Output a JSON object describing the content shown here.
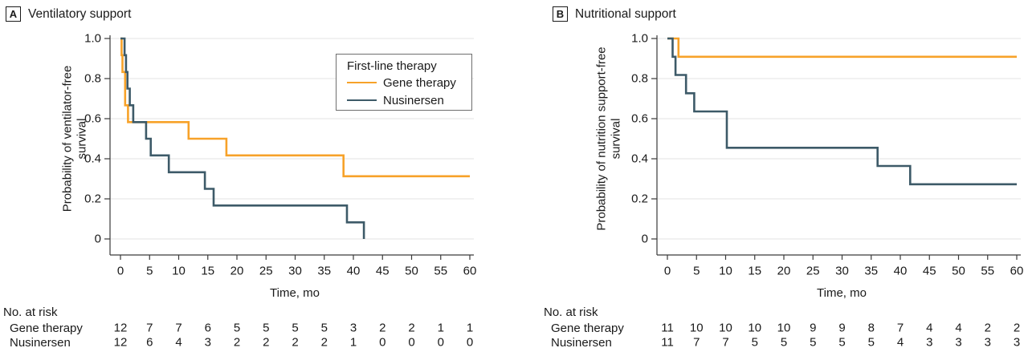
{
  "colors": {
    "grid": "#E3E3E3",
    "axis": "#3A3A3A",
    "text": "#1A1A1A",
    "legend_border": "#6E6E6E",
    "gene_therapy": "#F7A229",
    "nusinersen": "#3D5A68"
  },
  "chart_data": [
    {
      "type": "line",
      "subtype": "kaplan-meier-step",
      "panel_letter": "A",
      "title": "Ventilatory support",
      "xlabel": "Time, mo",
      "ylabel": "Probability of ventilator-free survival",
      "ylabel_lines": [
        "Probability of ventilator-free",
        "survival"
      ],
      "xlim": [
        0,
        60
      ],
      "ylim": [
        0,
        1.0
      ],
      "xticks": [
        0,
        5,
        10,
        15,
        20,
        25,
        30,
        35,
        40,
        45,
        50,
        55,
        60
      ],
      "yticks": [
        0,
        0.2,
        0.4,
        0.6,
        0.8,
        1.0
      ],
      "ytick_labels": [
        "0",
        "0.2",
        "0.4",
        "0.6",
        "0.8",
        "1.0"
      ],
      "grid": "horizontal",
      "legend": {
        "visible": true,
        "position": "upper-right",
        "title": "First-line therapy"
      },
      "series": [
        {
          "name": "Gene therapy",
          "color": "#F7A229",
          "steps": [
            [
              0,
              1.0
            ],
            [
              0.2,
              0.917
            ],
            [
              0.35,
              0.833
            ],
            [
              0.8,
              0.667
            ],
            [
              1.3,
              0.583
            ],
            [
              11.7,
              0.5
            ],
            [
              18.2,
              0.417
            ],
            [
              38.3,
              0.313
            ],
            [
              60,
              0.313
            ]
          ]
        },
        {
          "name": "Nusinersen",
          "color": "#3D5A68",
          "steps": [
            [
              0,
              1.0
            ],
            [
              0.7,
              0.917
            ],
            [
              0.95,
              0.833
            ],
            [
              1.2,
              0.75
            ],
            [
              1.6,
              0.667
            ],
            [
              2.2,
              0.583
            ],
            [
              4.4,
              0.5
            ],
            [
              5.2,
              0.417
            ],
            [
              8.3,
              0.333
            ],
            [
              14.5,
              0.25
            ],
            [
              16,
              0.167
            ],
            [
              38.9,
              0.083
            ],
            [
              41.8,
              0
            ]
          ]
        }
      ],
      "risk_table": {
        "heading": "No. at risk",
        "rows": [
          {
            "label": "Gene therapy",
            "values": [
              12,
              7,
              7,
              6,
              5,
              5,
              5,
              5,
              3,
              2,
              2,
              1,
              1
            ]
          },
          {
            "label": "Nusinersen",
            "values": [
              12,
              6,
              4,
              3,
              2,
              2,
              2,
              2,
              1,
              0,
              0,
              0,
              0
            ]
          }
        ]
      }
    },
    {
      "type": "line",
      "subtype": "kaplan-meier-step",
      "panel_letter": "B",
      "title": "Nutritional support",
      "xlabel": "Time, mo",
      "ylabel": "Probability of nutrition support-free survival",
      "ylabel_lines": [
        "Probability of nutrition support-free",
        "survival"
      ],
      "xlim": [
        0,
        60
      ],
      "ylim": [
        0,
        1.0
      ],
      "xticks": [
        0,
        5,
        10,
        15,
        20,
        25,
        30,
        35,
        40,
        45,
        50,
        55,
        60
      ],
      "yticks": [
        0,
        0.2,
        0.4,
        0.6,
        0.8,
        1.0
      ],
      "ytick_labels": [
        "0",
        "0.2",
        "0.4",
        "0.6",
        "0.8",
        "1.0"
      ],
      "grid": "horizontal",
      "legend": {
        "visible": false
      },
      "series": [
        {
          "name": "Gene therapy",
          "color": "#F7A229",
          "steps": [
            [
              0,
              1.0
            ],
            [
              1.9,
              0.909
            ],
            [
              60,
              0.909
            ]
          ]
        },
        {
          "name": "Nusinersen",
          "color": "#3D5A68",
          "steps": [
            [
              0,
              1.0
            ],
            [
              0.9,
              0.909
            ],
            [
              1.4,
              0.818
            ],
            [
              3.2,
              0.727
            ],
            [
              4.6,
              0.636
            ],
            [
              10.2,
              0.455
            ],
            [
              36.1,
              0.364
            ],
            [
              41.7,
              0.273
            ],
            [
              60,
              0.273
            ]
          ]
        }
      ],
      "risk_table": {
        "heading": "No. at risk",
        "rows": [
          {
            "label": "Gene therapy",
            "values": [
              11,
              10,
              10,
              10,
              10,
              9,
              9,
              8,
              7,
              4,
              4,
              2,
              2
            ]
          },
          {
            "label": "Nusinersen",
            "values": [
              11,
              7,
              7,
              5,
              5,
              5,
              5,
              5,
              4,
              3,
              3,
              3,
              3
            ]
          }
        ]
      }
    }
  ]
}
